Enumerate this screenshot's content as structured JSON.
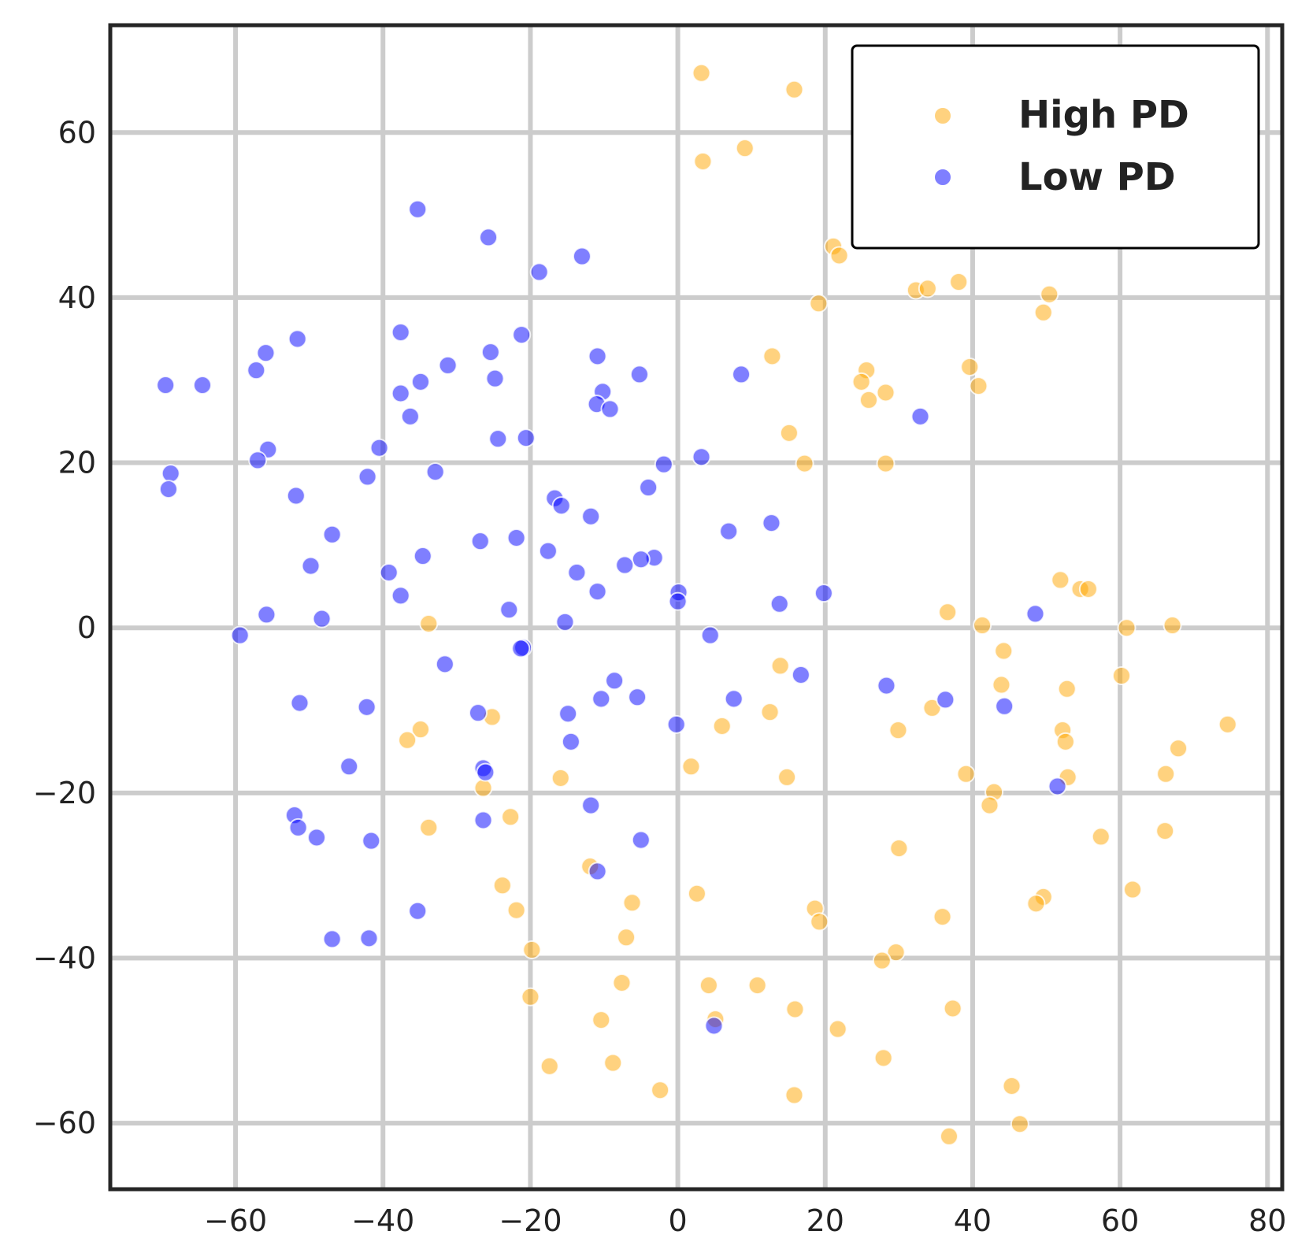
{
  "chart_data": {
    "type": "scatter",
    "title": "",
    "xlabel": "",
    "ylabel": "",
    "xlim": [
      -77,
      82
    ],
    "ylim": [
      -68,
      73
    ],
    "xticks": [
      -60,
      -40,
      -20,
      0,
      20,
      40,
      60,
      80
    ],
    "yticks": [
      -60,
      -40,
      -20,
      0,
      20,
      40,
      60
    ],
    "xtick_labels": [
      "−60",
      "−40",
      "−20",
      "0",
      "20",
      "40",
      "60",
      "80"
    ],
    "ytick_labels": [
      "−60",
      "−40",
      "−20",
      "0",
      "20",
      "40",
      "60"
    ],
    "grid": true,
    "legend_position": "top-right",
    "series": [
      {
        "name": "High PD",
        "color": "#FFA500",
        "points": [
          [
            3.2,
            67.2
          ],
          [
            15.8,
            65.2
          ],
          [
            3.4,
            56.5
          ],
          [
            9.1,
            58.1
          ],
          [
            21.1,
            46.2
          ],
          [
            21.9,
            45.1
          ],
          [
            32.3,
            40.9
          ],
          [
            33.9,
            41.1
          ],
          [
            38.1,
            41.9
          ],
          [
            50.4,
            40.4
          ],
          [
            49.6,
            38.2
          ],
          [
            19.1,
            39.3
          ],
          [
            12.8,
            32.9
          ],
          [
            25.6,
            31.2
          ],
          [
            24.9,
            29.8
          ],
          [
            28.2,
            28.5
          ],
          [
            25.9,
            27.6
          ],
          [
            39.6,
            31.6
          ],
          [
            40.8,
            29.3
          ],
          [
            15.1,
            23.6
          ],
          [
            17.2,
            19.9
          ],
          [
            28.2,
            19.9
          ],
          [
            51.9,
            5.8
          ],
          [
            54.6,
            4.7
          ],
          [
            55.7,
            4.7
          ],
          [
            36.6,
            1.9
          ],
          [
            41.3,
            0.3
          ],
          [
            60.9,
            0.0
          ],
          [
            67.1,
            0.3
          ],
          [
            44.2,
            -2.8
          ],
          [
            -33.8,
            0.5
          ],
          [
            13.9,
            -4.6
          ],
          [
            43.9,
            -6.9
          ],
          [
            60.2,
            -5.8
          ],
          [
            52.8,
            -7.4
          ],
          [
            34.5,
            -9.7
          ],
          [
            12.5,
            -10.2
          ],
          [
            6.0,
            -11.9
          ],
          [
            29.9,
            -12.4
          ],
          [
            52.2,
            -12.4
          ],
          [
            52.6,
            -13.8
          ],
          [
            74.6,
            -11.7
          ],
          [
            67.9,
            -14.6
          ],
          [
            -25.2,
            -10.8
          ],
          [
            -34.9,
            -12.3
          ],
          [
            -36.7,
            -13.6
          ],
          [
            1.8,
            -16.8
          ],
          [
            14.8,
            -18.1
          ],
          [
            39.1,
            -17.7
          ],
          [
            52.9,
            -18.1
          ],
          [
            66.2,
            -17.7
          ],
          [
            -15.9,
            -18.2
          ],
          [
            -26.4,
            -19.4
          ],
          [
            42.9,
            -19.9
          ],
          [
            42.3,
            -21.5
          ],
          [
            -22.7,
            -22.9
          ],
          [
            -33.8,
            -24.2
          ],
          [
            57.4,
            -25.3
          ],
          [
            66.1,
            -24.6
          ],
          [
            30.0,
            -26.7
          ],
          [
            -11.9,
            -28.9
          ],
          [
            -23.8,
            -31.2
          ],
          [
            2.6,
            -32.2
          ],
          [
            61.7,
            -31.7
          ],
          [
            49.6,
            -32.6
          ],
          [
            48.6,
            -33.4
          ],
          [
            -6.2,
            -33.3
          ],
          [
            -21.9,
            -34.2
          ],
          [
            18.6,
            -34.0
          ],
          [
            19.2,
            -35.6
          ],
          [
            35.9,
            -35.0
          ],
          [
            -7.0,
            -37.5
          ],
          [
            -19.8,
            -39.0
          ],
          [
            29.6,
            -39.3
          ],
          [
            27.7,
            -40.3
          ],
          [
            -7.6,
            -43.0
          ],
          [
            4.2,
            -43.3
          ],
          [
            10.8,
            -43.3
          ],
          [
            -20.0,
            -44.7
          ],
          [
            5.1,
            -47.4
          ],
          [
            15.9,
            -46.2
          ],
          [
            37.3,
            -46.1
          ],
          [
            -10.4,
            -47.5
          ],
          [
            21.7,
            -48.6
          ],
          [
            -17.4,
            -53.1
          ],
          [
            -8.8,
            -52.7
          ],
          [
            27.9,
            -52.1
          ],
          [
            -2.4,
            -56.0
          ],
          [
            15.8,
            -56.6
          ],
          [
            45.3,
            -55.5
          ],
          [
            36.8,
            -61.6
          ],
          [
            46.4,
            -60.1
          ]
        ]
      },
      {
        "name": "Low PD",
        "color": "#0000FF",
        "points": [
          [
            -35.3,
            50.7
          ],
          [
            -25.7,
            47.3
          ],
          [
            -13.0,
            45.0
          ],
          [
            -18.8,
            43.1
          ],
          [
            -37.6,
            35.8
          ],
          [
            -51.6,
            35.0
          ],
          [
            -55.9,
            33.3
          ],
          [
            -21.2,
            35.5
          ],
          [
            -25.4,
            33.4
          ],
          [
            -10.9,
            32.9
          ],
          [
            -57.2,
            31.2
          ],
          [
            -31.2,
            31.8
          ],
          [
            -24.8,
            30.2
          ],
          [
            -5.2,
            30.7
          ],
          [
            8.6,
            30.7
          ],
          [
            -69.5,
            29.4
          ],
          [
            -64.5,
            29.4
          ],
          [
            -34.9,
            29.8
          ],
          [
            -37.6,
            28.4
          ],
          [
            -10.2,
            28.6
          ],
          [
            -11.0,
            27.1
          ],
          [
            -9.2,
            26.5
          ],
          [
            -36.3,
            25.6
          ],
          [
            32.9,
            25.6
          ],
          [
            -24.4,
            22.9
          ],
          [
            -20.6,
            23.0
          ],
          [
            -40.5,
            21.8
          ],
          [
            -55.6,
            21.6
          ],
          [
            -57.0,
            20.3
          ],
          [
            -1.9,
            19.8
          ],
          [
            3.2,
            20.7
          ],
          [
            -68.8,
            18.7
          ],
          [
            -69.1,
            16.8
          ],
          [
            -42.1,
            18.3
          ],
          [
            -32.9,
            18.9
          ],
          [
            -4.0,
            17.0
          ],
          [
            -51.8,
            16.0
          ],
          [
            -16.7,
            15.7
          ],
          [
            -15.8,
            14.8
          ],
          [
            -11.8,
            13.5
          ],
          [
            12.7,
            12.7
          ],
          [
            6.9,
            11.7
          ],
          [
            -46.9,
            11.3
          ],
          [
            -21.9,
            10.9
          ],
          [
            -26.8,
            10.5
          ],
          [
            -17.6,
            9.3
          ],
          [
            -34.6,
            8.7
          ],
          [
            -3.2,
            8.5
          ],
          [
            -5.0,
            8.3
          ],
          [
            -7.2,
            7.6
          ],
          [
            -49.8,
            7.5
          ],
          [
            -39.2,
            6.7
          ],
          [
            -13.7,
            6.7
          ],
          [
            -10.9,
            4.4
          ],
          [
            0.1,
            4.3
          ],
          [
            -37.6,
            3.9
          ],
          [
            19.8,
            4.2
          ],
          [
            0.0,
            3.2
          ],
          [
            13.8,
            2.9
          ],
          [
            -22.9,
            2.2
          ],
          [
            -55.8,
            1.6
          ],
          [
            -48.3,
            1.1
          ],
          [
            -15.3,
            0.7
          ],
          [
            48.5,
            1.7
          ],
          [
            -59.4,
            -0.9
          ],
          [
            4.4,
            -0.9
          ],
          [
            -21.0,
            -2.4
          ],
          [
            -21.3,
            -2.5
          ],
          [
            -31.6,
            -4.4
          ],
          [
            16.7,
            -5.7
          ],
          [
            -8.6,
            -6.4
          ],
          [
            28.3,
            -7.0
          ],
          [
            -51.3,
            -9.1
          ],
          [
            -42.2,
            -9.6
          ],
          [
            -10.4,
            -8.6
          ],
          [
            -5.5,
            -8.4
          ],
          [
            7.6,
            -8.6
          ],
          [
            36.3,
            -8.7
          ],
          [
            44.3,
            -9.5
          ],
          [
            -27.1,
            -10.3
          ],
          [
            -14.9,
            -10.4
          ],
          [
            -0.2,
            -11.7
          ],
          [
            -14.5,
            -13.8
          ],
          [
            -44.6,
            -16.8
          ],
          [
            -26.4,
            -17.0
          ],
          [
            -26.1,
            -17.5
          ],
          [
            51.5,
            -19.2
          ],
          [
            -11.8,
            -21.5
          ],
          [
            -52.0,
            -22.7
          ],
          [
            -51.5,
            -24.2
          ],
          [
            -49.0,
            -25.4
          ],
          [
            -41.6,
            -25.8
          ],
          [
            -26.4,
            -23.3
          ],
          [
            -5.0,
            -25.7
          ],
          [
            -10.9,
            -29.5
          ],
          [
            -35.3,
            -34.3
          ],
          [
            -46.9,
            -37.7
          ],
          [
            -41.9,
            -37.6
          ],
          [
            4.9,
            -48.2
          ]
        ]
      }
    ]
  }
}
